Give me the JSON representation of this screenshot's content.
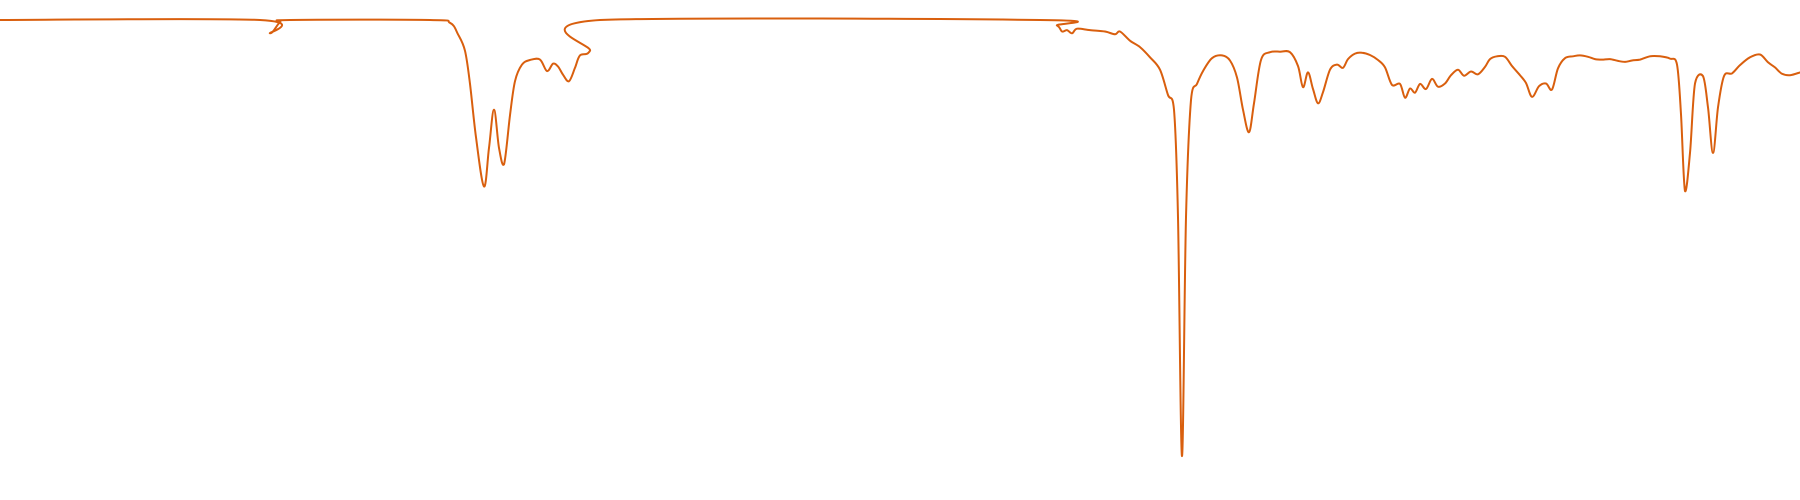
{
  "chart_data": {
    "type": "line",
    "title": "",
    "xlabel": "",
    "ylabel": "",
    "axes_visible": false,
    "grid": false,
    "legend": "none",
    "xlim": [
      0,
      1800
    ],
    "ylim": [
      0,
      100
    ],
    "series": [
      {
        "color": "#D95F0E",
        "points": [
          [
            0,
            100
          ],
          [
            260,
            100
          ],
          [
            270,
            97.1
          ],
          [
            280,
            99.5
          ],
          [
            290,
            100
          ],
          [
            430,
            100
          ],
          [
            450,
            99.4
          ],
          [
            458,
            96.9
          ],
          [
            465,
            93.3
          ],
          [
            470,
            86.1
          ],
          [
            476,
            74.5
          ],
          [
            484,
            63.8
          ],
          [
            489,
            72.2
          ],
          [
            494,
            80.5
          ],
          [
            499,
            72.2
          ],
          [
            504,
            68.6
          ],
          [
            510,
            79.3
          ],
          [
            515,
            86.7
          ],
          [
            522,
            90.3
          ],
          [
            530,
            91.3
          ],
          [
            540,
            91.4
          ],
          [
            547,
            88.9
          ],
          [
            553,
            90.5
          ],
          [
            558,
            89.9
          ],
          [
            563,
            88.1
          ],
          [
            569,
            86.7
          ],
          [
            575,
            89.6
          ],
          [
            580,
            92.3
          ],
          [
            590,
            93.3
          ],
          [
            600,
            100
          ],
          [
            1040,
            100
          ],
          [
            1057,
            98.8
          ],
          [
            1062,
            97.5
          ],
          [
            1067,
            97.8
          ],
          [
            1072,
            97.1
          ],
          [
            1077,
            98.1
          ],
          [
            1090,
            97.8
          ],
          [
            1105,
            97.5
          ],
          [
            1115,
            96.9
          ],
          [
            1120,
            97.5
          ],
          [
            1130,
            95.5
          ],
          [
            1140,
            94.1
          ],
          [
            1150,
            91.9
          ],
          [
            1160,
            89.2
          ],
          [
            1168,
            83.7
          ],
          [
            1174,
            80.5
          ],
          [
            1178,
            57.1
          ],
          [
            1182,
            5.2
          ],
          [
            1186,
            57.1
          ],
          [
            1191,
            82.6
          ],
          [
            1197,
            86.1
          ],
          [
            1203,
            88.9
          ],
          [
            1212,
            91.7
          ],
          [
            1222,
            92.3
          ],
          [
            1230,
            91.2
          ],
          [
            1237,
            87.5
          ],
          [
            1243,
            80.5
          ],
          [
            1249,
            75.6
          ],
          [
            1254,
            81.9
          ],
          [
            1261,
            91.3
          ],
          [
            1270,
            93.0
          ],
          [
            1280,
            93.1
          ],
          [
            1290,
            93.0
          ],
          [
            1298,
            90.0
          ],
          [
            1303,
            85.4
          ],
          [
            1308,
            88.6
          ],
          [
            1313,
            85.0
          ],
          [
            1318,
            81.9
          ],
          [
            1323,
            84.3
          ],
          [
            1330,
            89.2
          ],
          [
            1337,
            90.3
          ],
          [
            1343,
            89.6
          ],
          [
            1348,
            91.5
          ],
          [
            1355,
            92.7
          ],
          [
            1362,
            92.9
          ],
          [
            1370,
            92.4
          ],
          [
            1378,
            91.3
          ],
          [
            1385,
            89.7
          ],
          [
            1392,
            85.9
          ],
          [
            1400,
            86.1
          ],
          [
            1405,
            83.1
          ],
          [
            1410,
            85.1
          ],
          [
            1415,
            84.2
          ],
          [
            1420,
            86.1
          ],
          [
            1426,
            85.0
          ],
          [
            1432,
            87.2
          ],
          [
            1438,
            85.5
          ],
          [
            1445,
            86.2
          ],
          [
            1451,
            88.0
          ],
          [
            1458,
            89.2
          ],
          [
            1464,
            87.9
          ],
          [
            1471,
            88.8
          ],
          [
            1478,
            88.2
          ],
          [
            1485,
            89.8
          ],
          [
            1490,
            91.5
          ],
          [
            1497,
            92.1
          ],
          [
            1505,
            92.0
          ],
          [
            1512,
            90.0
          ],
          [
            1520,
            88.0
          ],
          [
            1526,
            86.3
          ],
          [
            1532,
            83.3
          ],
          [
            1539,
            85.6
          ],
          [
            1546,
            86.2
          ],
          [
            1552,
            84.9
          ],
          [
            1558,
            89.5
          ],
          [
            1565,
            91.7
          ],
          [
            1573,
            92.1
          ],
          [
            1580,
            92.3
          ],
          [
            1588,
            92.0
          ],
          [
            1595,
            91.5
          ],
          [
            1602,
            91.4
          ],
          [
            1610,
            91.5
          ],
          [
            1618,
            91.1
          ],
          [
            1625,
            90.9
          ],
          [
            1632,
            91.2
          ],
          [
            1640,
            91.4
          ],
          [
            1650,
            92.1
          ],
          [
            1660,
            92.1
          ],
          [
            1670,
            91.6
          ],
          [
            1677,
            90.3
          ],
          [
            1681,
            79.5
          ],
          [
            1685,
            62.8
          ],
          [
            1690,
            71.1
          ],
          [
            1695,
            86.2
          ],
          [
            1703,
            87.8
          ],
          [
            1708,
            81.0
          ],
          [
            1713,
            71.1
          ],
          [
            1718,
            81.0
          ],
          [
            1724,
            87.8
          ],
          [
            1732,
            88.4
          ],
          [
            1740,
            90.2
          ],
          [
            1750,
            91.9
          ],
          [
            1760,
            92.5
          ],
          [
            1768,
            90.8
          ],
          [
            1775,
            89.7
          ],
          [
            1782,
            88.3
          ],
          [
            1790,
            88.0
          ],
          [
            1800,
            88.6
          ]
        ]
      }
    ]
  }
}
